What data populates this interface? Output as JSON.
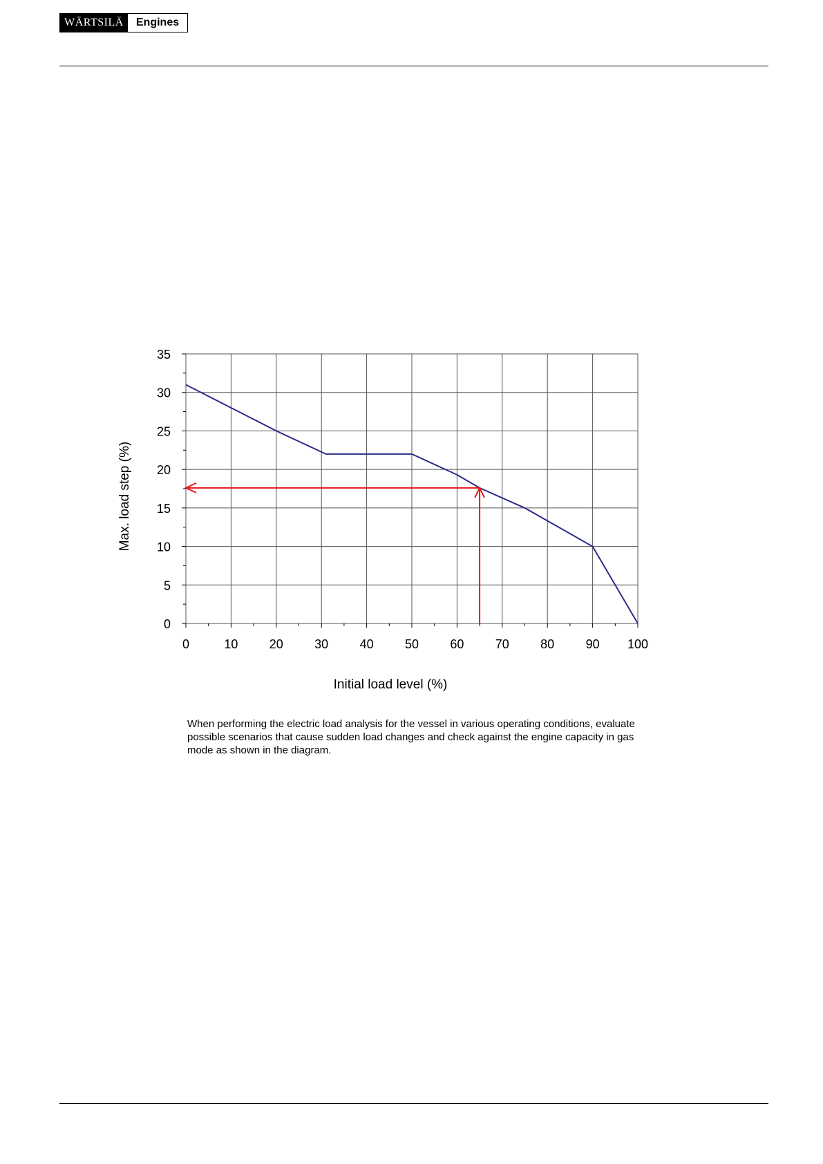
{
  "header": {
    "brand": "WÄRTSILÄ",
    "product": "Engines"
  },
  "chart_data": {
    "type": "line",
    "xlabel": "Initial load level (%)",
    "ylabel": "Max. load step (%)",
    "xlim": [
      0,
      100
    ],
    "ylim": [
      0,
      35
    ],
    "xticks": [
      0,
      10,
      20,
      30,
      40,
      50,
      60,
      70,
      80,
      90,
      100
    ],
    "yticks": [
      0,
      5,
      10,
      15,
      20,
      25,
      30,
      35
    ],
    "grid": true,
    "series": [
      {
        "color": "#2b2a8a",
        "x": [
          0,
          20,
          31,
          50,
          60,
          65,
          75,
          90,
          100
        ],
        "y": [
          31,
          25,
          22,
          22,
          19.3,
          17.6,
          15,
          10,
          0
        ]
      }
    ],
    "annotation": {
      "color": "#e8141c",
      "x": 65,
      "y": 17.6
    }
  },
  "caption": "When performing the electric load analysis for the vessel in various operating conditions, evaluate possible scenarios that cause sudden load changes and check against the engine capacity in gas mode as shown in the diagram."
}
